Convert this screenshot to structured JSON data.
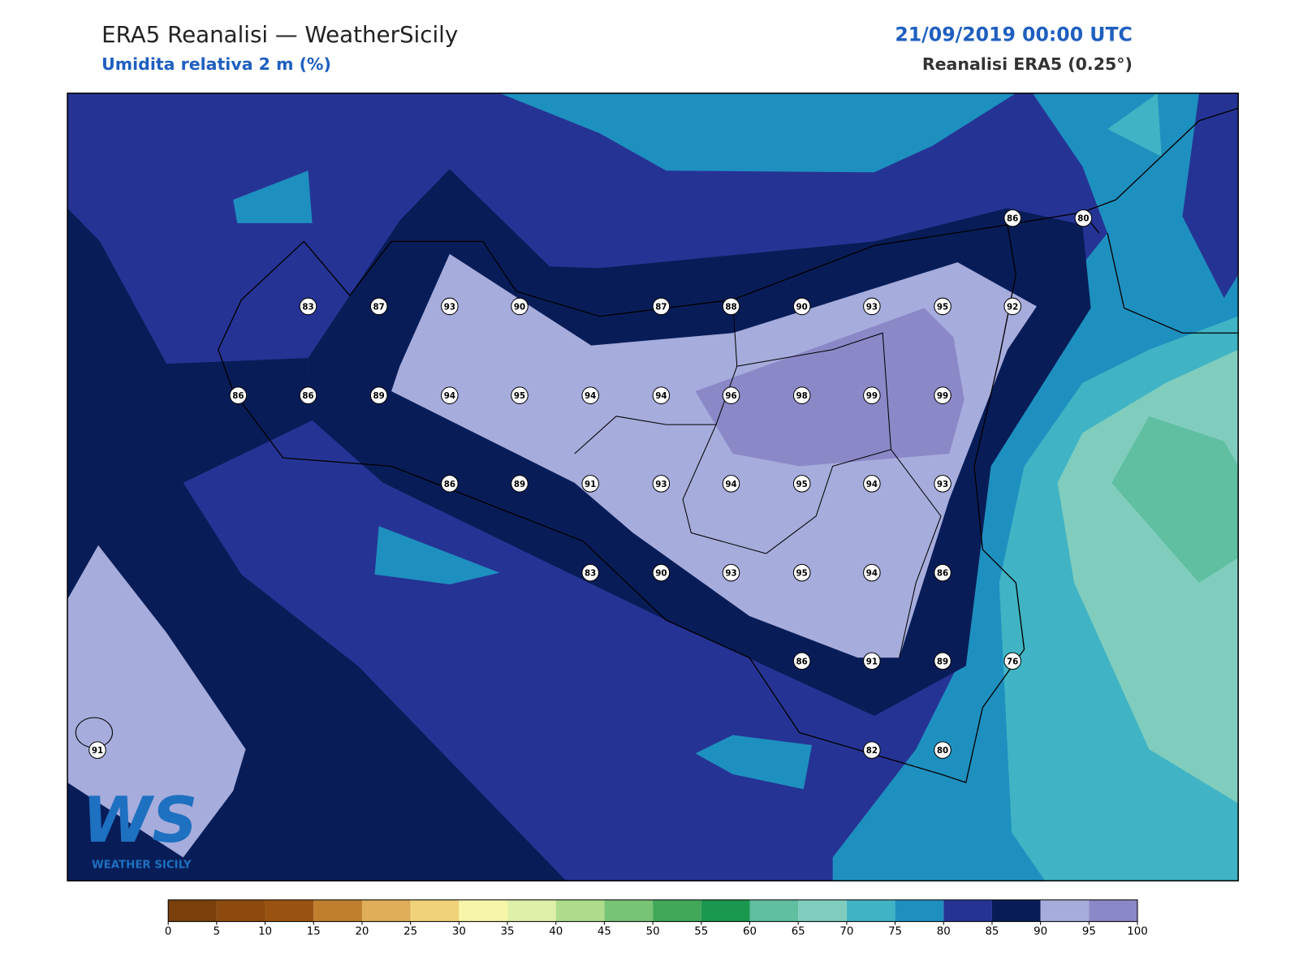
{
  "header": {
    "title": "ERA5 Reanalisi — WeatherSicily",
    "subtitle": "Umidita relativa 2 m (%)",
    "date": "21/09/2019 00:00 UTC",
    "source": "Reanalisi ERA5 (0.25°)"
  },
  "logo": {
    "text": "WS",
    "caption": "WEATHER SICILY"
  },
  "stations": [
    86,
    80,
    83,
    87,
    93,
    90,
    87,
    88,
    90,
    93,
    95,
    92,
    86,
    86,
    89,
    94,
    95,
    94,
    94,
    96,
    98,
    99,
    99,
    86,
    89,
    91,
    93,
    94,
    95,
    94,
    93,
    83,
    90,
    93,
    95,
    94,
    86,
    86,
    91,
    89,
    76,
    91,
    82,
    80
  ],
  "colorbar": {
    "ticks": [
      0,
      5,
      10,
      15,
      20,
      25,
      30,
      35,
      40,
      45,
      50,
      55,
      60,
      65,
      70,
      75,
      80,
      85,
      90,
      95,
      100
    ],
    "colors": [
      "#7a3f0a",
      "#8c4a0e",
      "#9a5212",
      "#c07f2c",
      "#e0ae58",
      "#f0d27a",
      "#f7f5a8",
      "#dff0a8",
      "#aedc8c",
      "#78c476",
      "#41a85a",
      "#1a9850",
      "#5fbfa0",
      "#80cdbe",
      "#40b4c4",
      "#1e90c0",
      "#253494",
      "#081d58",
      "#a6acdc",
      "#8b88c8"
    ]
  }
}
